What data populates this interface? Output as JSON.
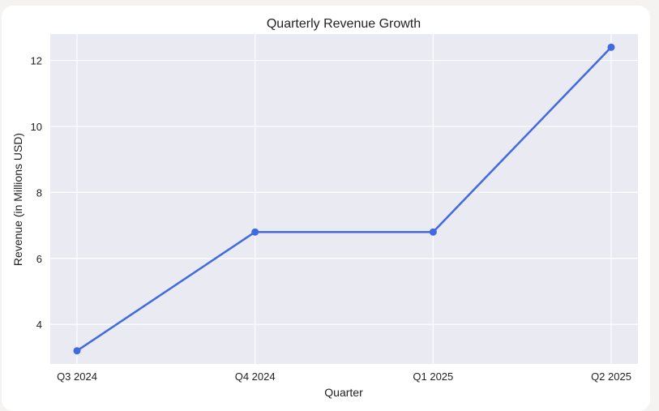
{
  "chart_data": {
    "type": "line",
    "title": "Quarterly Revenue Growth",
    "xlabel": "Quarter",
    "ylabel": "Revenue (in Millions USD)",
    "categories": [
      "Q3 2024",
      "Q4 2024",
      "Q1 2025",
      "Q2 2025"
    ],
    "series": [
      {
        "values": [
          3.2,
          6.8,
          6.8,
          12.4
        ]
      }
    ],
    "ylim": [
      2.8,
      12.8
    ],
    "yticks": [
      4,
      6,
      8,
      10,
      12
    ],
    "grid": true,
    "colors": {
      "line": "#4169e1",
      "plot_background": "#eaeaf2",
      "grid": "#ffffff"
    }
  }
}
